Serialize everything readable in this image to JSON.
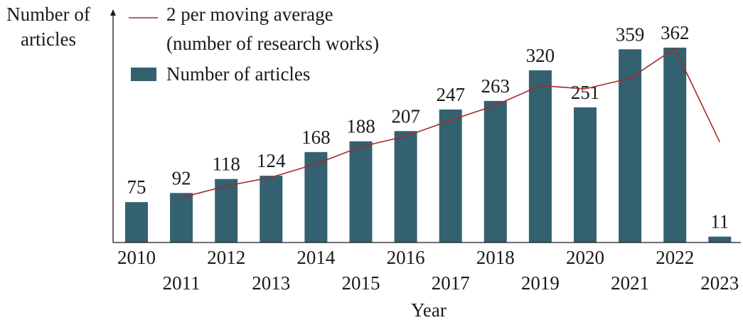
{
  "chart_data": {
    "type": "bar",
    "ylabel_lines": [
      "Number of",
      "articles"
    ],
    "xlabel": "Year",
    "categories": [
      "2010",
      "2011",
      "2012",
      "2013",
      "2014",
      "2015",
      "2016",
      "2017",
      "2018",
      "2019",
      "2020",
      "2021",
      "2022",
      "2023"
    ],
    "series": [
      {
        "name": "Number of articles",
        "type": "bar",
        "color": "#34616f",
        "values": [
          75,
          92,
          118,
          124,
          168,
          188,
          207,
          247,
          263,
          320,
          251,
          359,
          362,
          11
        ]
      },
      {
        "name_lines": [
          "2 per moving average",
          "(number of research works)"
        ],
        "type": "line",
        "color": "#a52a2a",
        "x": [
          "2011",
          "2012",
          "2013",
          "2014",
          "2015",
          "2016",
          "2017",
          "2018",
          "2019",
          "2020",
          "2021",
          "2022",
          "2023"
        ],
        "values": [
          83.5,
          105,
          121,
          146,
          178,
          197.5,
          227,
          255,
          291.5,
          285.5,
          305,
          360.5,
          186.5
        ]
      }
    ],
    "ylim": [
      0,
      380
    ],
    "grid": false,
    "legend_position": "top-left"
  }
}
